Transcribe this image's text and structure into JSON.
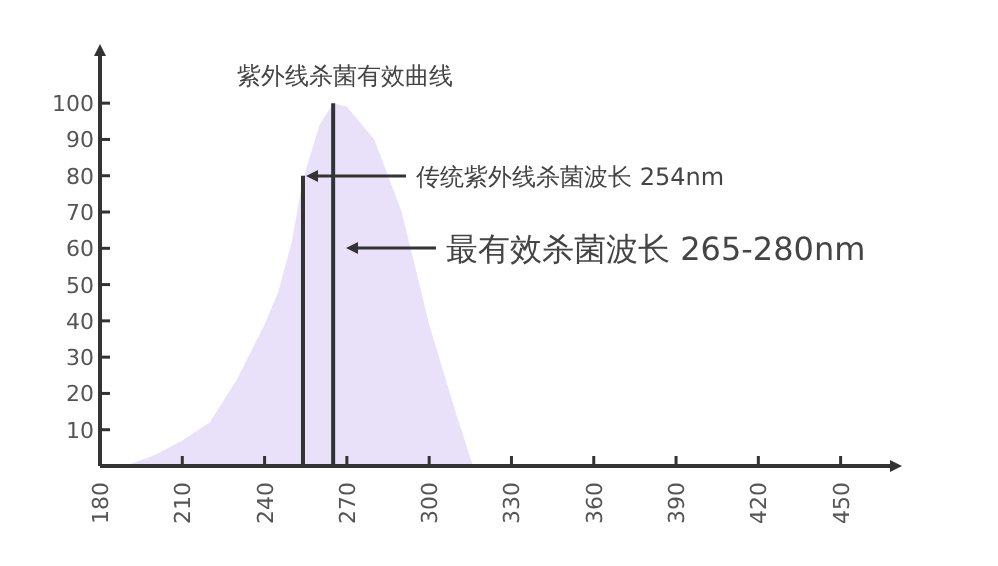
{
  "chart_data": {
    "type": "area",
    "title": "紫外线杀菌有效曲线",
    "xlim": [
      180,
      468
    ],
    "ylim": [
      0,
      113
    ],
    "xticks": [
      180,
      210,
      240,
      270,
      300,
      330,
      360,
      390,
      420,
      450
    ],
    "yticks": [
      10,
      20,
      30,
      40,
      50,
      60,
      70,
      80,
      90,
      100
    ],
    "series": [
      {
        "color": "#e9e1f9",
        "x": [
          189,
          200,
          210,
          220,
          230,
          240,
          245,
          250,
          254,
          260,
          265,
          270,
          280,
          290,
          300,
          310,
          316
        ],
        "values": [
          0,
          3,
          7,
          12,
          24,
          39,
          48,
          62,
          79,
          94,
          100,
          99,
          90,
          70,
          39,
          14,
          0
        ]
      },
      {
        "type": "line",
        "color": "#333333",
        "x": [
          254,
          254
        ],
        "values": [
          0,
          80
        ]
      },
      {
        "type": "line",
        "color": "#333333",
        "x": [
          265,
          265
        ],
        "values": [
          0,
          100
        ]
      }
    ],
    "annotations": [
      "传统紫外线杀菌波长 254nm",
      "最有效杀菌波长 265-280nm"
    ]
  }
}
